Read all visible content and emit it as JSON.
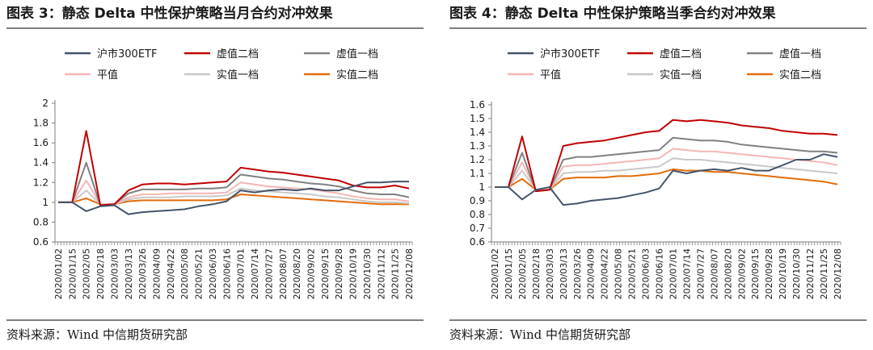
{
  "charts": [
    {
      "title": "图表 3：静态 Delta 中性保护策略当月合约对冲效果",
      "source": "资料来源：Wind 中信期货研究部",
      "chart_data": {
        "type": "line",
        "ylim": [
          0.6,
          2
        ],
        "yticks": [
          "0.6",
          "0.8",
          "1",
          "1.2",
          "1.4",
          "1.6",
          "1.8",
          "2"
        ],
        "grid": false,
        "legend_position": "top",
        "x": [
          "2020/01/02",
          "2020/01/15",
          "2020/02/05",
          "2020/02/18",
          "2020/03/03",
          "2020/03/13",
          "2020/03/26",
          "2020/04/09",
          "2020/04/22",
          "2020/05/08",
          "2020/05/21",
          "2020/06/03",
          "2020/06/16",
          "2020/07/01",
          "2020/07/14",
          "2020/07/27",
          "2020/08/07",
          "2020/08/20",
          "2020/09/02",
          "2020/09/15",
          "2020/09/28",
          "2020/10/19",
          "2020/10/30",
          "2020/11/12",
          "2020/11/25",
          "2020/12/08"
        ],
        "series": [
          {
            "name": "沪市300ETF",
            "color": "#44546a",
            "values": [
              1.0,
              1.0,
              0.91,
              0.96,
              0.97,
              0.88,
              0.9,
              0.91,
              0.92,
              0.93,
              0.96,
              0.98,
              1.01,
              1.12,
              1.1,
              1.12,
              1.13,
              1.12,
              1.14,
              1.12,
              1.12,
              1.16,
              1.2,
              1.2,
              1.21,
              1.21
            ]
          },
          {
            "name": "虚值二档",
            "color": "#c00000",
            "values": [
              1.0,
              1.0,
              1.72,
              0.97,
              0.98,
              1.12,
              1.18,
              1.19,
              1.19,
              1.18,
              1.19,
              1.2,
              1.21,
              1.35,
              1.33,
              1.31,
              1.3,
              1.28,
              1.26,
              1.24,
              1.22,
              1.17,
              1.15,
              1.15,
              1.17,
              1.14
            ]
          },
          {
            "name": "虚值一档",
            "color": "#808080",
            "values": [
              1.0,
              1.0,
              1.4,
              0.97,
              0.98,
              1.09,
              1.13,
              1.13,
              1.13,
              1.13,
              1.14,
              1.14,
              1.15,
              1.28,
              1.26,
              1.24,
              1.23,
              1.21,
              1.19,
              1.18,
              1.16,
              1.12,
              1.09,
              1.08,
              1.08,
              1.05
            ]
          },
          {
            "name": "平值",
            "color": "#f4b6b6",
            "values": [
              1.0,
              1.0,
              1.22,
              0.98,
              0.98,
              1.05,
              1.08,
              1.08,
              1.09,
              1.09,
              1.09,
              1.09,
              1.1,
              1.2,
              1.18,
              1.16,
              1.15,
              1.14,
              1.13,
              1.11,
              1.09,
              1.06,
              1.04,
              1.03,
              1.03,
              1.01
            ]
          },
          {
            "name": "实值一档",
            "color": "#c8c8c8",
            "values": [
              1.0,
              1.0,
              1.12,
              0.98,
              0.98,
              1.03,
              1.05,
              1.05,
              1.05,
              1.06,
              1.06,
              1.06,
              1.07,
              1.14,
              1.12,
              1.11,
              1.1,
              1.09,
              1.08,
              1.06,
              1.05,
              1.03,
              1.01,
              1.0,
              1.0,
              0.99
            ]
          },
          {
            "name": "实值二档",
            "color": "#e46c0a",
            "values": [
              1.0,
              1.0,
              1.04,
              0.98,
              0.98,
              1.01,
              1.02,
              1.02,
              1.02,
              1.02,
              1.02,
              1.02,
              1.03,
              1.08,
              1.07,
              1.06,
              1.05,
              1.04,
              1.03,
              1.02,
              1.01,
              1.0,
              0.99,
              0.98,
              0.98,
              0.98
            ]
          }
        ]
      }
    },
    {
      "title": "图表 4：静态 Delta 中性保护策略当季合约对冲效果",
      "source": "资料来源：Wind 中信期货研究部",
      "chart_data": {
        "type": "line",
        "ylim": [
          0.6,
          1.6
        ],
        "yticks": [
          "0.6",
          "0.7",
          "0.8",
          "0.9",
          "1",
          "1.1",
          "1.2",
          "1.3",
          "1.4",
          "1.5",
          "1.6"
        ],
        "grid": false,
        "legend_position": "top",
        "x": [
          "2020/01/02",
          "2020/01/15",
          "2020/02/05",
          "2020/02/18",
          "2020/03/03",
          "2020/03/13",
          "2020/03/26",
          "2020/04/09",
          "2020/04/22",
          "2020/05/08",
          "2020/05/21",
          "2020/06/03",
          "2020/06/16",
          "2020/07/01",
          "2020/07/14",
          "2020/07/27",
          "2020/08/07",
          "2020/08/20",
          "2020/09/02",
          "2020/09/15",
          "2020/09/28",
          "2020/10/19",
          "2020/10/30",
          "2020/11/12",
          "2020/11/25",
          "2020/12/08"
        ],
        "series": [
          {
            "name": "沪市300ETF",
            "color": "#44546a",
            "values": [
              1.0,
              1.0,
              0.91,
              0.98,
              1.0,
              0.87,
              0.88,
              0.9,
              0.91,
              0.92,
              0.94,
              0.96,
              0.99,
              1.12,
              1.1,
              1.12,
              1.13,
              1.12,
              1.14,
              1.12,
              1.12,
              1.16,
              1.2,
              1.2,
              1.24,
              1.22
            ]
          },
          {
            "name": "虚值二档",
            "color": "#c00000",
            "values": [
              1.0,
              1.0,
              1.37,
              0.97,
              0.98,
              1.3,
              1.32,
              1.33,
              1.34,
              1.36,
              1.38,
              1.4,
              1.41,
              1.49,
              1.48,
              1.49,
              1.48,
              1.47,
              1.45,
              1.44,
              1.43,
              1.41,
              1.4,
              1.39,
              1.39,
              1.38
            ]
          },
          {
            "name": "虚值一档",
            "color": "#808080",
            "values": [
              1.0,
              1.0,
              1.25,
              0.97,
              0.98,
              1.2,
              1.22,
              1.22,
              1.23,
              1.24,
              1.25,
              1.26,
              1.27,
              1.36,
              1.35,
              1.34,
              1.34,
              1.33,
              1.31,
              1.3,
              1.29,
              1.28,
              1.27,
              1.26,
              1.26,
              1.25
            ]
          },
          {
            "name": "平值",
            "color": "#f4b6b6",
            "values": [
              1.0,
              1.0,
              1.18,
              0.98,
              0.98,
              1.15,
              1.16,
              1.16,
              1.17,
              1.18,
              1.19,
              1.2,
              1.21,
              1.28,
              1.27,
              1.26,
              1.26,
              1.25,
              1.24,
              1.23,
              1.22,
              1.21,
              1.2,
              1.19,
              1.18,
              1.16
            ]
          },
          {
            "name": "实值一档",
            "color": "#c8c8c8",
            "values": [
              1.0,
              1.0,
              1.12,
              0.98,
              0.98,
              1.1,
              1.11,
              1.11,
              1.12,
              1.12,
              1.13,
              1.14,
              1.15,
              1.21,
              1.2,
              1.2,
              1.19,
              1.18,
              1.17,
              1.16,
              1.15,
              1.14,
              1.13,
              1.12,
              1.11,
              1.1
            ]
          },
          {
            "name": "实值二档",
            "color": "#e46c0a",
            "values": [
              1.0,
              1.0,
              1.06,
              0.98,
              0.98,
              1.06,
              1.07,
              1.07,
              1.07,
              1.08,
              1.08,
              1.09,
              1.1,
              1.13,
              1.12,
              1.12,
              1.11,
              1.11,
              1.1,
              1.09,
              1.08,
              1.07,
              1.06,
              1.05,
              1.04,
              1.02
            ]
          }
        ]
      }
    }
  ]
}
